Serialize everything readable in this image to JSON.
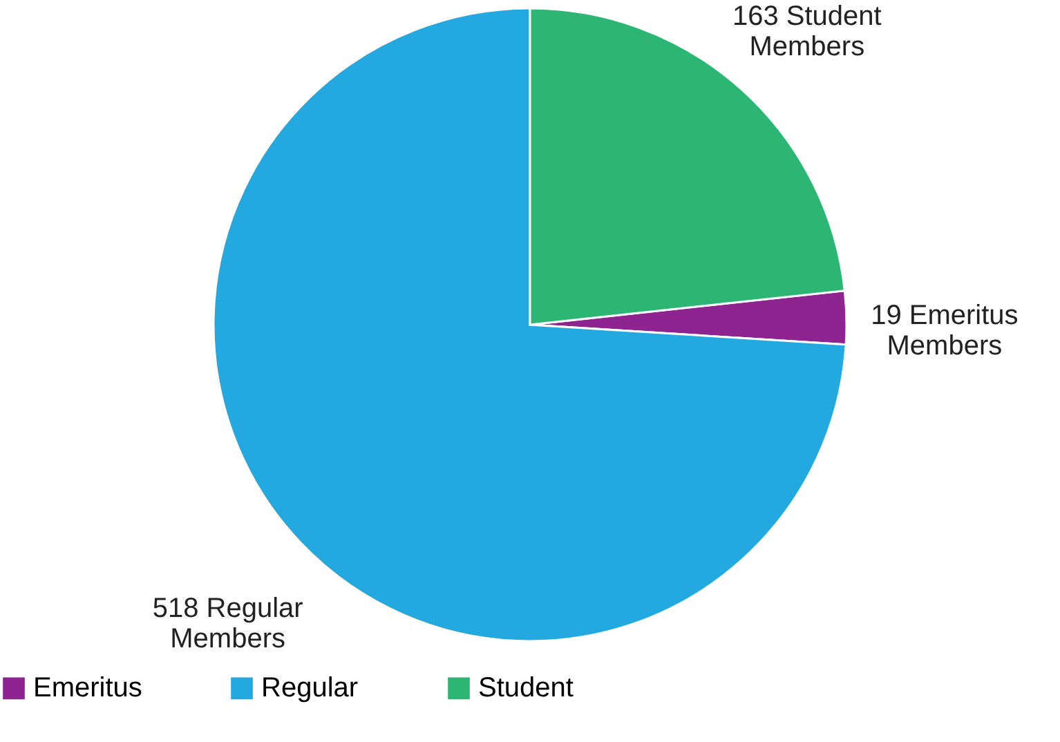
{
  "chart_data": {
    "type": "pie",
    "categories": [
      "Emeritus",
      "Regular",
      "Student"
    ],
    "values": [
      19,
      518,
      163
    ],
    "colors": [
      "#8e2490",
      "#24a8e0",
      "#2db673"
    ],
    "value_labels": [
      "19 Emeritus\nMembers",
      "518 Regular\nMembers",
      "163 Student\nMembers"
    ],
    "legend": "bottom"
  }
}
